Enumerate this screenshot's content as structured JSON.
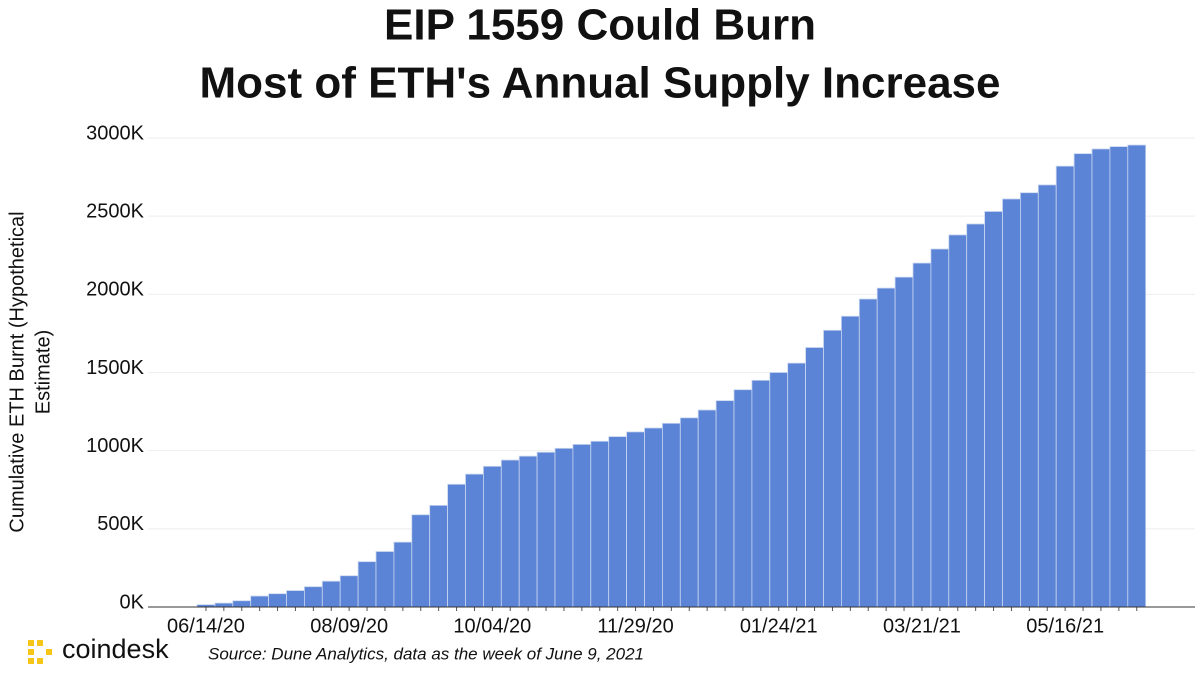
{
  "chart_data": {
    "type": "bar",
    "title": [
      "EIP 1559 Could Burn",
      "Most of ETH's Annual Supply Increase"
    ],
    "y_label": [
      "Cumulative ETH Burnt (Hypothetical",
      "Estimate)"
    ],
    "source": "Source: Dune Analytics, data as the week of June 9, 2021",
    "brand": "coindesk",
    "categories": [
      "06/14/20",
      null,
      null,
      null,
      null,
      null,
      null,
      null,
      "08/09/20",
      null,
      null,
      null,
      null,
      null,
      null,
      null,
      "10/04/20",
      null,
      null,
      null,
      null,
      null,
      null,
      null,
      "11/29/20",
      null,
      null,
      null,
      null,
      null,
      null,
      null,
      "01/24/21",
      null,
      null,
      null,
      null,
      null,
      null,
      null,
      "03/21/21",
      null,
      null,
      null,
      null,
      null,
      null,
      null,
      "05/16/21",
      null,
      null,
      null,
      null
    ],
    "values": [
      15,
      25,
      40,
      70,
      85,
      105,
      130,
      165,
      200,
      290,
      355,
      415,
      590,
      650,
      785,
      850,
      900,
      940,
      965,
      990,
      1015,
      1040,
      1060,
      1090,
      1120,
      1145,
      1175,
      1210,
      1260,
      1320,
      1390,
      1450,
      1500,
      1560,
      1660,
      1770,
      1860,
      1970,
      2040,
      2110,
      2200,
      2290,
      2380,
      2450,
      2530,
      2610,
      2650,
      2700,
      2820,
      2900,
      2930,
      2945,
      2955
    ],
    "color": "#5b84d6",
    "ylim": [
      0,
      3000
    ],
    "yticks": [
      {
        "value": 0,
        "label": "0K"
      },
      {
        "value": 500,
        "label": "500K"
      },
      {
        "value": 1000,
        "label": "1000K"
      },
      {
        "value": 1500,
        "label": "1500K"
      },
      {
        "value": 2000,
        "label": "2000K"
      },
      {
        "value": 2500,
        "label": "2500K"
      },
      {
        "value": 3000,
        "label": "3000K"
      }
    ],
    "grid": true
  }
}
